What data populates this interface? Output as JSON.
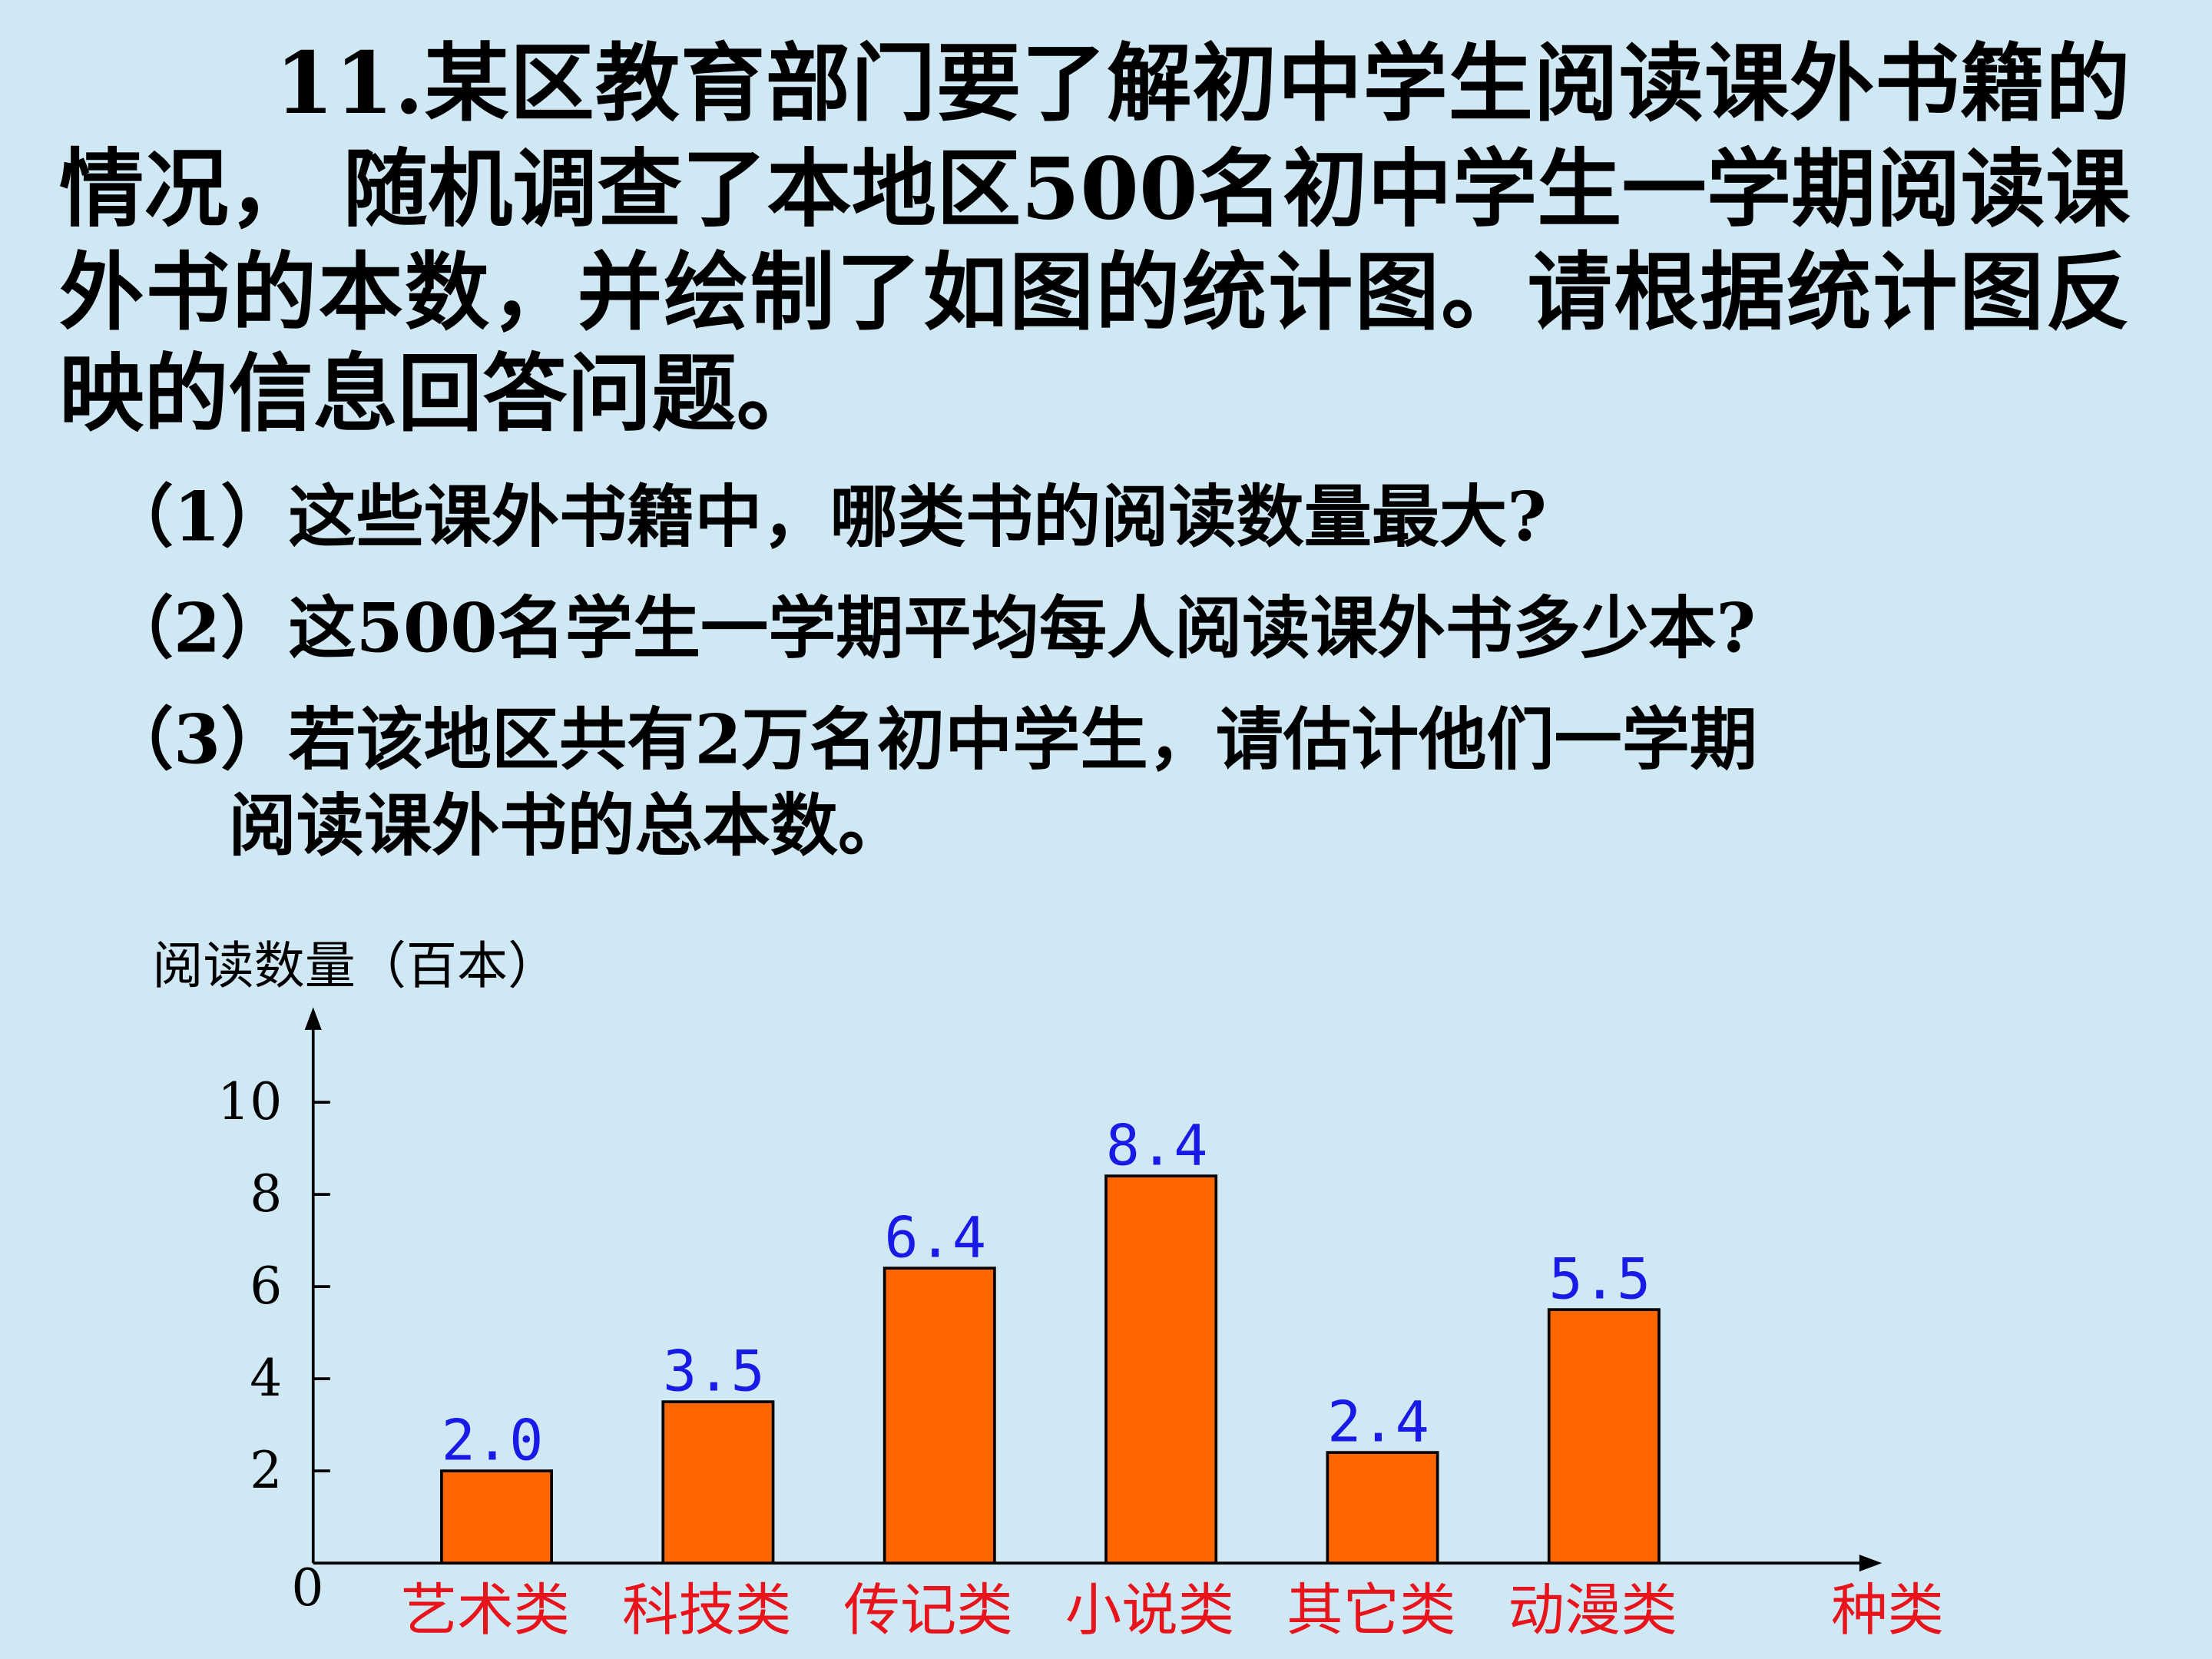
{
  "text": {
    "paragraph": [
      "11.某区教育部门要了解初中学生阅读课外书籍的",
      "情况，  随机调查了本地区500名初中学生一学期阅读课",
      "外书的本数，并绘制了如图的统计图。请根据统计图反",
      "映的信息回答问题。"
    ],
    "questions": [
      "（1）这些课外书籍中，哪类书的阅读数量最大?",
      "（2）这500名学生一学期平均每人阅读课外书多少本?",
      "（3）若该地区共有2万名初中学生，请估计他们一学期",
      "阅读课外书的总本数。"
    ]
  },
  "chart_data": {
    "type": "bar",
    "y_label": "阅读数量（百本）",
    "x_label": "种类",
    "categories": [
      "艺术类",
      "科技类",
      "传记类",
      "小说类",
      "其它类",
      "动漫类"
    ],
    "values": [
      2.0,
      3.5,
      6.4,
      8.4,
      2.4,
      5.5
    ],
    "value_labels": [
      "2.0",
      "3.5",
      "6.4",
      "8.4",
      "2.4",
      "5.5"
    ],
    "color": "#ff6600",
    "label_color": "#1a1ae6",
    "category_color": "#e8141c",
    "ylim": [
      0,
      12
    ],
    "yticks": [
      0,
      2,
      4,
      6,
      8,
      10
    ],
    "grid": false
  }
}
